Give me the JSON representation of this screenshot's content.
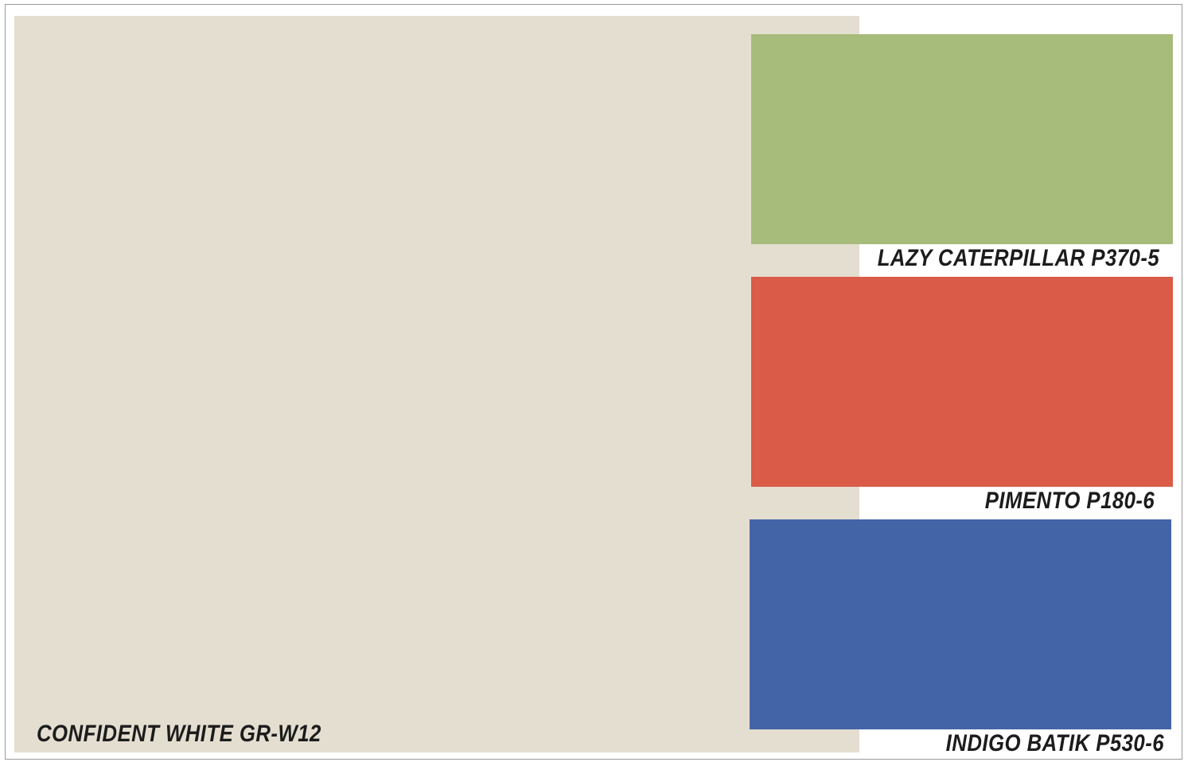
{
  "palette": {
    "main": {
      "name": "CONFIDENT WHITE GR-W12",
      "color": "#e4ded0"
    },
    "swatches": [
      {
        "name": "LAZY CATERPILLAR P370-5",
        "color": "#a7bb7b"
      },
      {
        "name": "PIMENTO P180-6",
        "color": "#da5b48"
      },
      {
        "name": "INDIGO BATIK P530-6",
        "color": "#4464a8"
      }
    ]
  }
}
